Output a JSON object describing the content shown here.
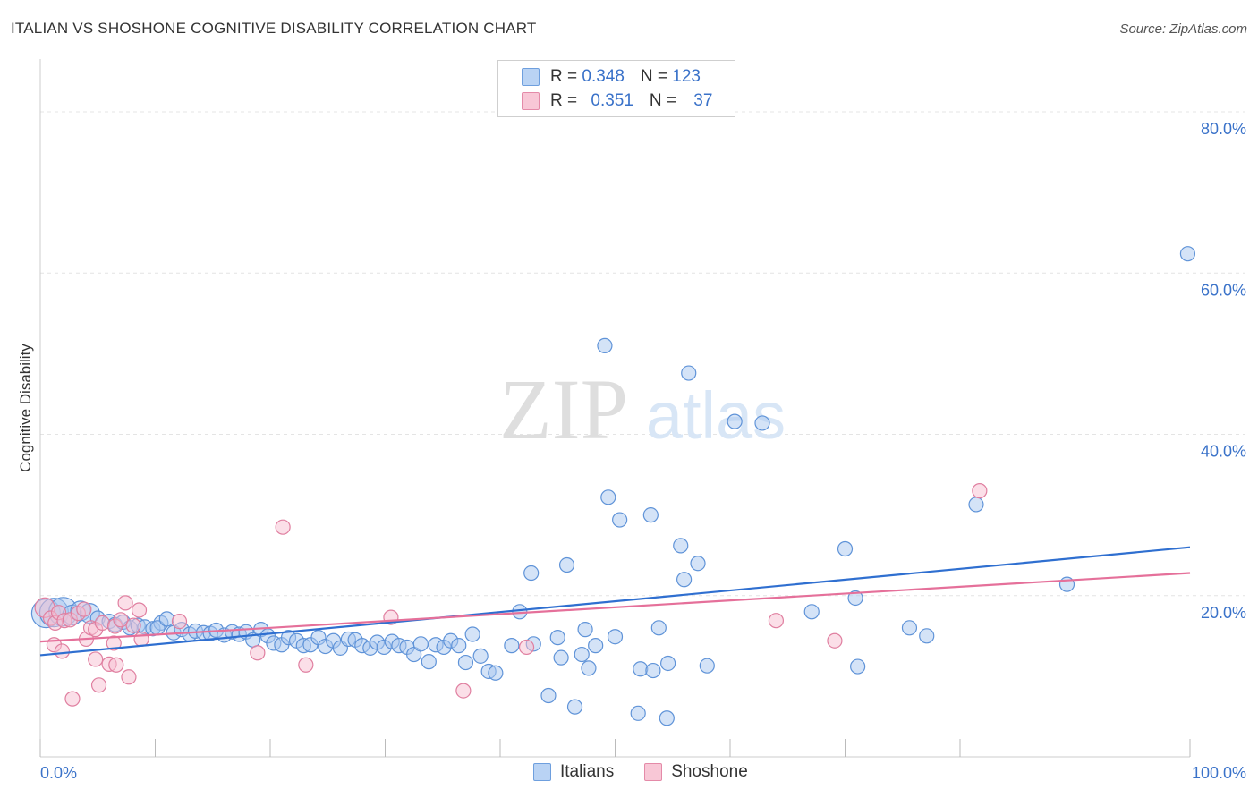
{
  "header": {
    "title": "ITALIAN VS SHOSHONE COGNITIVE DISABILITY CORRELATION CHART",
    "source": "Source: ZipAtlas.com"
  },
  "legend": {
    "italians": {
      "r_label": "R = ",
      "r_value": "0.348",
      "n_label": "N = ",
      "n_value": "123"
    },
    "shoshone": {
      "r_label": "R = ",
      "r_value": "0.351",
      "n_label": "N = ",
      "n_value": "37"
    }
  },
  "bottom_legend": {
    "italians": "Italians",
    "shoshone": "Shoshone"
  },
  "watermark": {
    "zip": "ZIP",
    "atlas": "atlas"
  },
  "colors": {
    "italians_fill": "#a9c8f0",
    "italians_stroke": "#5f93d8",
    "italians_line": "#2f6fd0",
    "shoshone_fill": "#f7bfd1",
    "shoshone_stroke": "#e07fa0",
    "shoshone_line": "#e5709a",
    "tick_label": "#3a72c9",
    "grid": "#e4e4e4"
  },
  "chart_data": {
    "type": "scatter",
    "title": "ITALIAN VS SHOSHONE COGNITIVE DISABILITY CORRELATION CHART",
    "xlabel": "",
    "ylabel": "Cognitive Disability",
    "xlim": [
      0,
      100
    ],
    "ylim": [
      0,
      85
    ],
    "x_tick_labels": [
      "0.0%",
      "100.0%"
    ],
    "y_ticks": [
      20,
      40,
      60,
      80
    ],
    "y_tick_labels": [
      "20.0%",
      "40.0%",
      "60.0%",
      "80.0%"
    ],
    "grid": true,
    "legend_position": "top-center",
    "series": [
      {
        "name": "Italians",
        "trend": [
          [
            0,
            12.6
          ],
          [
            100,
            26.0
          ]
        ],
        "points": [
          [
            0.5,
            17.8,
            3
          ],
          [
            1.2,
            17.9,
            3
          ],
          [
            2.0,
            18.0,
            3
          ],
          [
            2.8,
            17.6,
            2
          ],
          [
            3.5,
            18.1,
            2
          ],
          [
            4.3,
            17.8,
            2
          ],
          [
            5.0,
            17.2,
            1
          ],
          [
            6.0,
            16.8,
            1
          ],
          [
            6.5,
            16.4,
            1
          ],
          [
            7.2,
            16.7,
            1
          ],
          [
            7.8,
            16.0,
            1
          ],
          [
            8.5,
            16.3,
            1
          ],
          [
            9.1,
            16.1,
            1
          ],
          [
            9.8,
            15.9,
            1
          ],
          [
            10.5,
            16.6,
            1
          ],
          [
            10.2,
            16.0,
            1
          ],
          [
            11.0,
            17.1,
            1
          ],
          [
            11.6,
            15.4,
            1
          ],
          [
            12.3,
            15.8,
            1
          ],
          [
            13.0,
            15.2,
            1
          ],
          [
            13.5,
            15.6,
            1
          ],
          [
            14.2,
            15.4,
            1
          ],
          [
            14.8,
            15.3,
            1
          ],
          [
            15.3,
            15.7,
            1
          ],
          [
            16.0,
            15.1,
            1
          ],
          [
            16.7,
            15.5,
            1
          ],
          [
            17.3,
            15.2,
            1
          ],
          [
            17.9,
            15.5,
            1
          ],
          [
            18.5,
            14.5,
            1
          ],
          [
            19.2,
            15.8,
            1
          ],
          [
            19.8,
            15.0,
            1
          ],
          [
            20.3,
            14.1,
            1
          ],
          [
            21.0,
            13.9,
            1
          ],
          [
            21.6,
            14.8,
            1
          ],
          [
            22.3,
            14.4,
            1
          ],
          [
            22.9,
            13.8,
            1
          ],
          [
            23.5,
            13.9,
            1
          ],
          [
            24.2,
            14.8,
            1
          ],
          [
            24.8,
            13.7,
            1
          ],
          [
            25.5,
            14.4,
            1
          ],
          [
            26.1,
            13.5,
            1
          ],
          [
            26.8,
            14.6,
            1
          ],
          [
            27.4,
            14.5,
            1
          ],
          [
            28.0,
            13.8,
            1
          ],
          [
            28.7,
            13.5,
            1
          ],
          [
            29.3,
            14.2,
            1
          ],
          [
            29.9,
            13.6,
            1
          ],
          [
            30.6,
            14.3,
            1
          ],
          [
            31.2,
            13.8,
            1
          ],
          [
            31.9,
            13.6,
            1
          ],
          [
            32.5,
            12.7,
            1
          ],
          [
            33.1,
            14.0,
            1
          ],
          [
            33.8,
            11.8,
            1
          ],
          [
            34.4,
            13.9,
            1
          ],
          [
            35.1,
            13.6,
            1
          ],
          [
            35.7,
            14.4,
            1
          ],
          [
            36.4,
            13.8,
            1
          ],
          [
            37.0,
            11.7,
            1
          ],
          [
            37.6,
            15.2,
            1
          ],
          [
            38.3,
            12.5,
            1
          ],
          [
            39.0,
            10.6,
            1
          ],
          [
            39.6,
            10.4,
            1
          ],
          [
            41.0,
            13.8,
            1
          ],
          [
            41.7,
            18.0,
            1
          ],
          [
            42.7,
            22.8,
            1
          ],
          [
            42.9,
            14.0,
            1
          ],
          [
            44.2,
            7.6,
            1
          ],
          [
            45.0,
            14.8,
            1
          ],
          [
            45.3,
            12.3,
            1
          ],
          [
            45.8,
            23.8,
            1
          ],
          [
            46.5,
            6.2,
            1
          ],
          [
            47.1,
            12.7,
            1
          ],
          [
            47.4,
            15.8,
            1
          ],
          [
            47.7,
            11.0,
            1
          ],
          [
            48.3,
            13.8,
            1
          ],
          [
            49.1,
            51.0,
            1
          ],
          [
            49.4,
            32.2,
            1
          ],
          [
            50.0,
            14.9,
            1
          ],
          [
            50.4,
            29.4,
            1
          ],
          [
            52.0,
            5.4,
            1
          ],
          [
            52.2,
            10.9,
            1
          ],
          [
            53.1,
            30.0,
            1
          ],
          [
            53.3,
            10.7,
            1
          ],
          [
            53.8,
            16.0,
            1
          ],
          [
            54.6,
            11.6,
            1
          ],
          [
            54.5,
            4.8,
            1
          ],
          [
            55.7,
            26.2,
            1
          ],
          [
            56.0,
            22.0,
            1
          ],
          [
            56.4,
            47.6,
            1
          ],
          [
            57.2,
            24.0,
            1
          ],
          [
            58.0,
            11.3,
            1
          ],
          [
            60.4,
            41.6,
            1
          ],
          [
            62.8,
            41.4,
            1
          ],
          [
            67.1,
            18.0,
            1
          ],
          [
            70.0,
            25.8,
            1
          ],
          [
            70.9,
            19.7,
            1
          ],
          [
            71.1,
            11.2,
            1
          ],
          [
            75.6,
            16.0,
            1
          ],
          [
            77.1,
            15.0,
            1
          ],
          [
            81.4,
            31.3,
            1
          ],
          [
            89.3,
            21.4,
            1
          ],
          [
            99.8,
            62.4,
            1
          ]
        ]
      },
      {
        "name": "Shoshone",
        "trend": [
          [
            0,
            14.3
          ],
          [
            100,
            22.8
          ]
        ],
        "points": [
          [
            0.4,
            18.5,
            2
          ],
          [
            0.9,
            17.2,
            1
          ],
          [
            1.3,
            16.6,
            1
          ],
          [
            1.6,
            17.9,
            1
          ],
          [
            2.1,
            16.9,
            1
          ],
          [
            2.6,
            17.0,
            1
          ],
          [
            1.2,
            13.9,
            1
          ],
          [
            1.9,
            13.1,
            1
          ],
          [
            2.8,
            7.2,
            1
          ],
          [
            3.3,
            17.8,
            1
          ],
          [
            3.8,
            18.3,
            1
          ],
          [
            4.0,
            14.6,
            1
          ],
          [
            4.4,
            16.0,
            1
          ],
          [
            4.8,
            15.8,
            1
          ],
          [
            4.8,
            12.1,
            1
          ],
          [
            5.1,
            8.9,
            1
          ],
          [
            5.4,
            16.6,
            1
          ],
          [
            6.0,
            11.5,
            1
          ],
          [
            6.4,
            14.1,
            1
          ],
          [
            6.5,
            16.2,
            1
          ],
          [
            6.6,
            11.4,
            1
          ],
          [
            7.0,
            17.0,
            1
          ],
          [
            7.4,
            19.1,
            1
          ],
          [
            7.7,
            9.9,
            1
          ],
          [
            8.1,
            16.3,
            1
          ],
          [
            8.6,
            18.2,
            1
          ],
          [
            8.8,
            14.6,
            1
          ],
          [
            12.1,
            16.8,
            1
          ],
          [
            18.9,
            12.9,
            1
          ],
          [
            21.1,
            28.5,
            1
          ],
          [
            23.1,
            11.4,
            1
          ],
          [
            30.5,
            17.3,
            1
          ],
          [
            36.8,
            8.2,
            1
          ],
          [
            42.3,
            13.6,
            1
          ],
          [
            64.0,
            16.9,
            1
          ],
          [
            69.1,
            14.4,
            1
          ],
          [
            81.7,
            33.0,
            1
          ]
        ]
      }
    ]
  }
}
